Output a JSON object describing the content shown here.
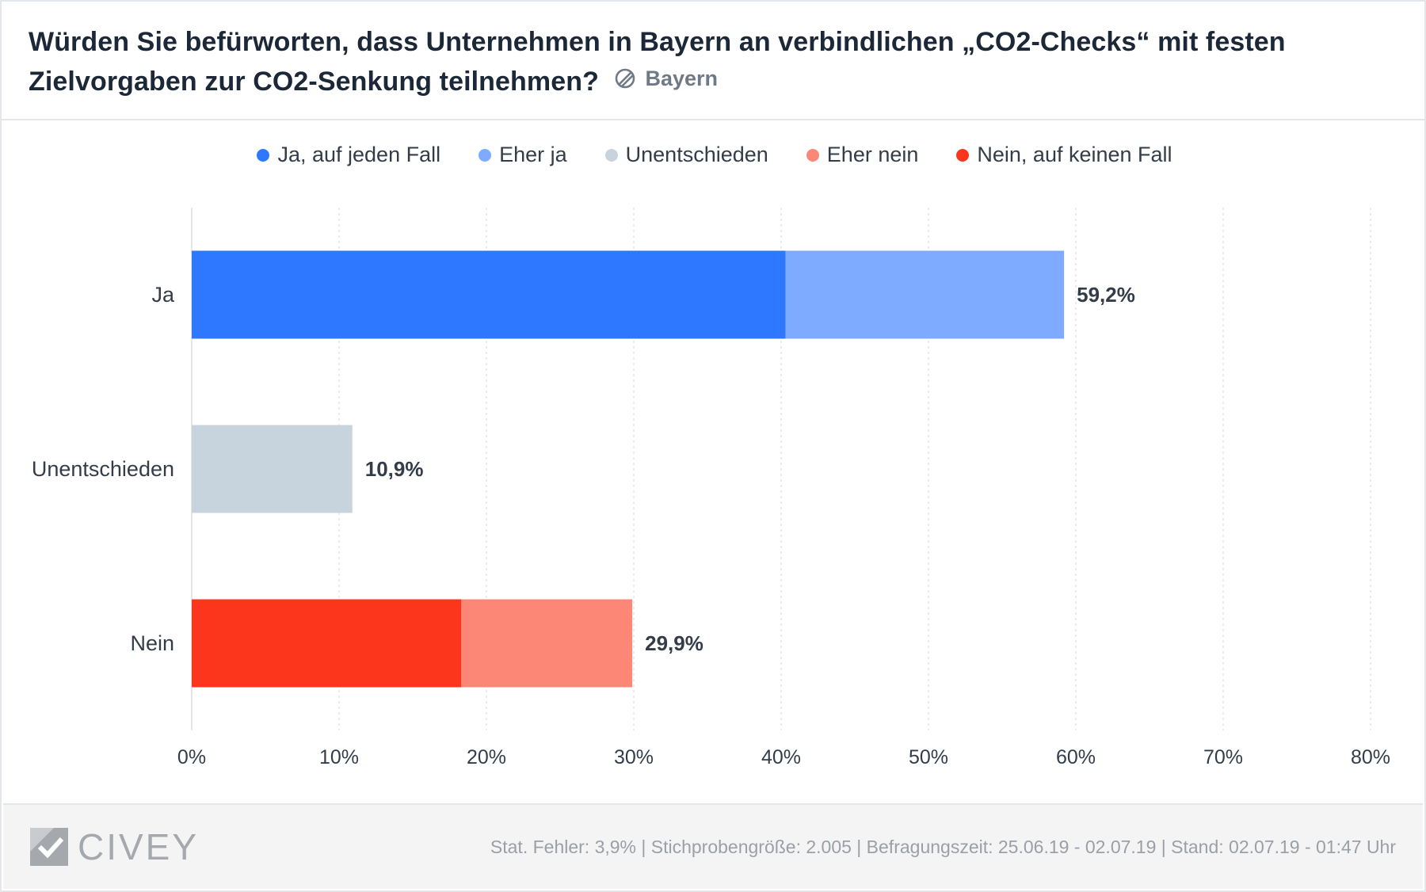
{
  "header": {
    "title": "Würden Sie befürworten, dass Unternehmen in Bayern an verbindlichen „CO2-Checks“ mit festen Zielvorgaben zur CO2-Senkung teilnehmen?",
    "region_label": "Bayern",
    "region_icon": "region-icon"
  },
  "legend": [
    {
      "label": "Ja, auf jeden Fall",
      "color": "#2e78ff"
    },
    {
      "label": "Eher ja",
      "color": "#7eabff"
    },
    {
      "label": "Unentschieden",
      "color": "#c8d4dd"
    },
    {
      "label": "Eher nein",
      "color": "#fd8776"
    },
    {
      "label": "Nein, auf keinen Fall",
      "color": "#fc361d"
    }
  ],
  "chart_data": {
    "type": "bar",
    "orientation": "horizontal",
    "stacked": true,
    "categories": [
      "Ja",
      "Unentschieden",
      "Nein"
    ],
    "series": [
      {
        "name": "Ja, auf jeden Fall",
        "values": [
          40.3,
          0,
          0
        ],
        "color": "#2e78ff"
      },
      {
        "name": "Eher ja",
        "values": [
          18.9,
          0,
          0
        ],
        "color": "#7eabff"
      },
      {
        "name": "Unentschieden",
        "values": [
          0,
          10.9,
          0
        ],
        "color": "#c8d4dd"
      },
      {
        "name": "Eher nein",
        "values": [
          0,
          0,
          11.6
        ],
        "color": "#fd8776"
      },
      {
        "name": "Nein, auf keinen Fall",
        "values": [
          0,
          0,
          18.3
        ],
        "color": "#fc361d"
      }
    ],
    "series_order": [
      "Ja, auf jeden Fall",
      "Eher ja",
      "Unentschieden",
      "Nein, auf keinen Fall",
      "Eher nein"
    ],
    "totals": [
      "59,2%",
      "10,9%",
      "29,9%"
    ],
    "xlim": [
      0,
      80
    ],
    "xticks": [
      0,
      10,
      20,
      30,
      40,
      50,
      60,
      70,
      80
    ],
    "xtick_labels": [
      "0%",
      "10%",
      "20%",
      "30%",
      "40%",
      "50%",
      "60%",
      "70%",
      "80%"
    ],
    "grid": true,
    "legend_position": "top"
  },
  "footer": {
    "logo_text": "CIVEY",
    "meta": "Stat. Fehler: 3,9% | Stichprobengröße: 2.005 | Befragungszeit: 25.06.19 - 02.07.19 | Stand: 02.07.19 - 01:47 Uhr"
  }
}
